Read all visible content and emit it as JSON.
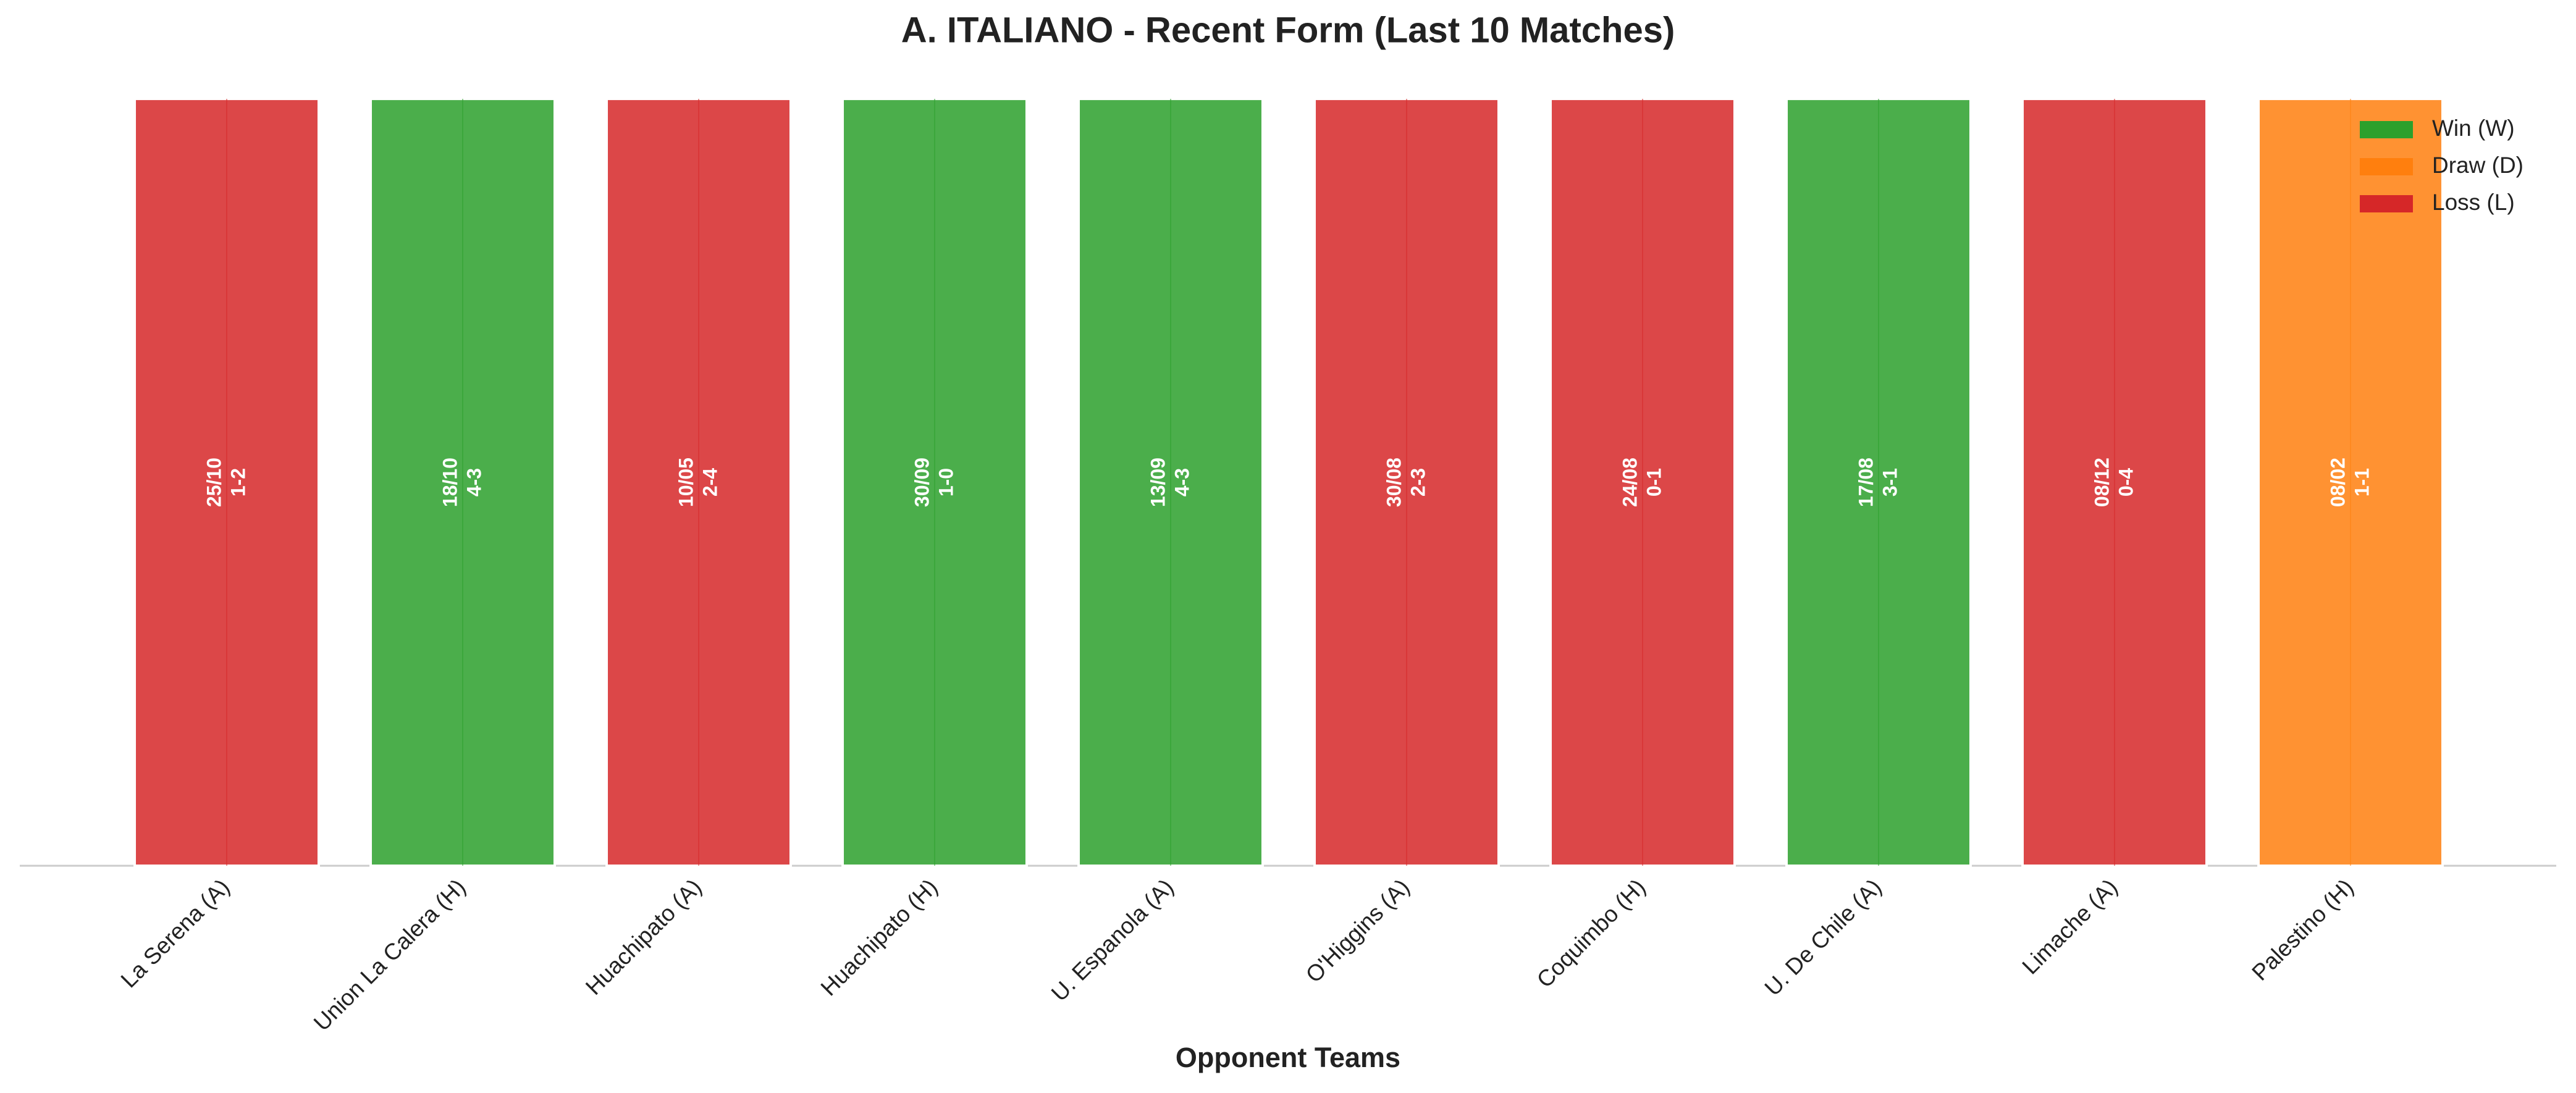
{
  "chart_data": {
    "type": "bar",
    "title": "A. ITALIANO - Recent Form (Last 10 Matches)",
    "x_label": "Opponent Teams",
    "categories": [
      "La Serena (A)",
      "Union La Calera (H)",
      "Huachipato (A)",
      "Huachipato (H)",
      "U. Espanola (A)",
      "O'Higgins (A)",
      "Coquimbo (H)",
      "U. De Chile (A)",
      "Limache (A)",
      "Palestino (H)"
    ],
    "values": [
      1,
      1,
      1,
      1,
      1,
      1,
      1,
      1,
      1,
      1
    ],
    "dates": [
      "25/10",
      "18/10",
      "10/05",
      "30/09",
      "13/09",
      "30/08",
      "24/08",
      "17/08",
      "08/12",
      "08/02"
    ],
    "scores": [
      "1-2",
      "4-3",
      "2-4",
      "1-0",
      "4-3",
      "2-3",
      "0-1",
      "3-1",
      "0-4",
      "1-1"
    ],
    "colors": [
      "#d62728",
      "#2ca02c",
      "#d62728",
      "#2ca02c",
      "#2ca02c",
      "#d62728",
      "#d62728",
      "#2ca02c",
      "#d62728",
      "#ff7f0e"
    ],
    "legend": [
      {
        "name": "Win (W)",
        "color": "#2ca02c"
      },
      {
        "name": "Draw (D)",
        "color": "#ff7f0e"
      },
      {
        "name": "Loss (L)",
        "color": "#d62728"
      }
    ],
    "legend_position": "upper right",
    "ylim": [
      0,
      1.05
    ]
  }
}
